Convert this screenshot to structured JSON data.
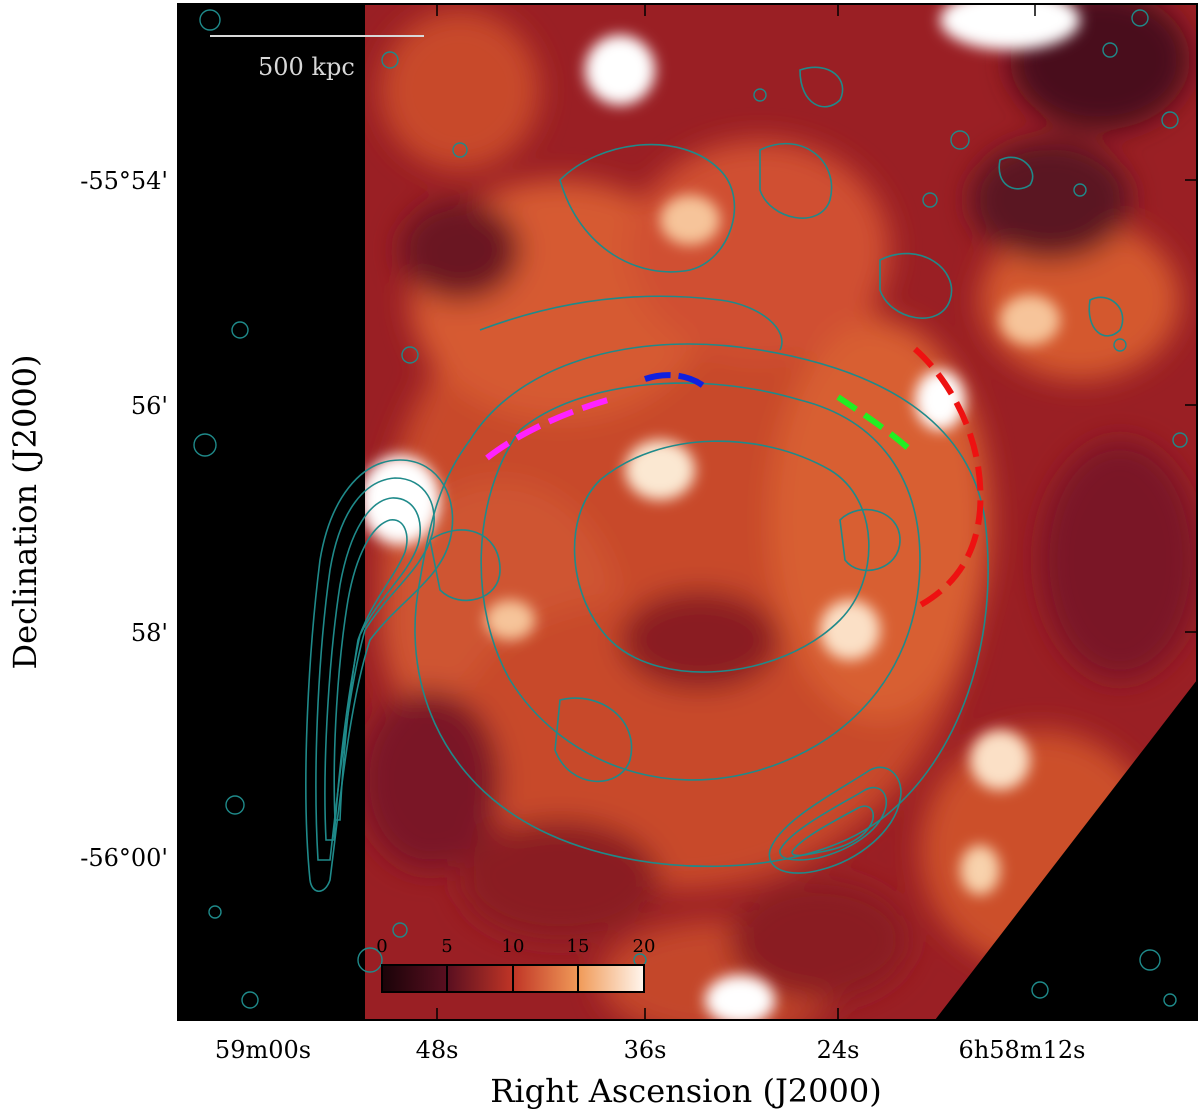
{
  "figure": {
    "xlabel": "Right Ascension (J2000)",
    "ylabel": "Declination (J2000)",
    "x_ticks": [
      "59m00s",
      "48s",
      "36s",
      "24s",
      "6h58m12s"
    ],
    "y_ticks": [
      "-55°54'",
      "56'",
      "58'",
      "-56°00'"
    ],
    "scale_bar_label": "500 kpc",
    "colorbar_ticks": [
      "0",
      "5",
      "10",
      "15",
      "20"
    ],
    "colors": {
      "colormap": [
        "#1a0308",
        "#4a0c1c",
        "#8a1a22",
        "#c23a26",
        "#e46a34",
        "#f09a58",
        "#f8cfa2",
        "#ffffff"
      ],
      "contour": "#1f8a8a",
      "dash_magenta": "#ff22ff",
      "dash_blue": "#1020e0",
      "dash_green": "#22ee22",
      "dash_red": "#ee1111"
    }
  }
}
